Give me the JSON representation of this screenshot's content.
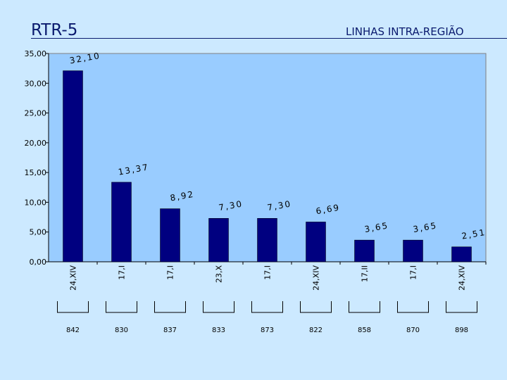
{
  "header": {
    "title": "RTR-5",
    "subtitle": "LINHAS INTRA-REGIÃO"
  },
  "chart_data": {
    "type": "bar",
    "categories": [
      "24,XIV",
      "17,I",
      "17,I",
      "23,X",
      "17,I",
      "24,XIV",
      "17,II",
      "17,I",
      "24,XIV"
    ],
    "values": [
      32.1,
      13.37,
      8.92,
      7.3,
      7.3,
      6.69,
      3.65,
      3.65,
      2.51
    ],
    "value_labels": [
      "32,10",
      "13,37",
      "8,92",
      "7,30",
      "7,30",
      "6,69",
      "3,65",
      "3,65",
      "2,51"
    ],
    "codes": [
      "842",
      "830",
      "837",
      "833",
      "873",
      "822",
      "858",
      "870",
      "898"
    ],
    "y_ticks": [
      "0,00",
      "5,00",
      "10,00",
      "15,00",
      "20,00",
      "25,00",
      "30,00",
      "35,00"
    ],
    "ylim": [
      0,
      35
    ],
    "grid": false,
    "colors": {
      "bar": "#000080",
      "plot_area": "#99ccff",
      "background": "#cce9ff",
      "title": "#0a1a6e"
    }
  }
}
